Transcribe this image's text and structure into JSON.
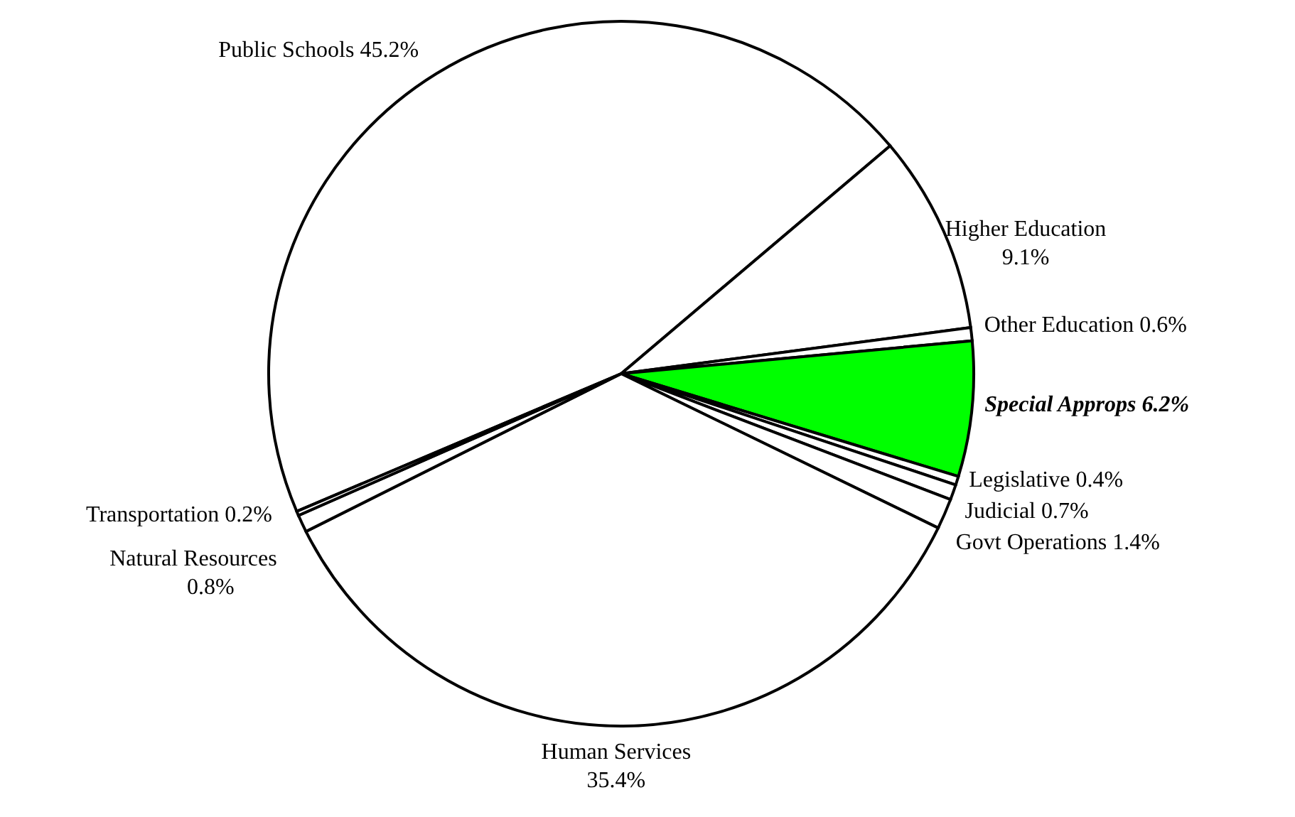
{
  "chart_data": {
    "type": "pie",
    "categories": [
      "Public Schools",
      "Higher Education",
      "Other Education",
      "Special Approps",
      "Legislative",
      "Judicial",
      "Govt Operations",
      "Human Services",
      "Natural Resources",
      "Transportation"
    ],
    "values": [
      45.2,
      9.1,
      0.6,
      6.2,
      0.4,
      0.7,
      1.4,
      35.4,
      0.8,
      0.2
    ],
    "value_labels": [
      "45.2%",
      "9.1%",
      "0.6%",
      "6.2%",
      "0.4%",
      "0.7%",
      "1.4%",
      "35.4%",
      "0.8%",
      "0.2%"
    ],
    "colors": [
      "#ffffff",
      "#ffffff",
      "#ffffff",
      "#00ff00",
      "#ffffff",
      "#ffffff",
      "#ffffff",
      "#ffffff",
      "#ffffff",
      "#ffffff"
    ]
  }
}
